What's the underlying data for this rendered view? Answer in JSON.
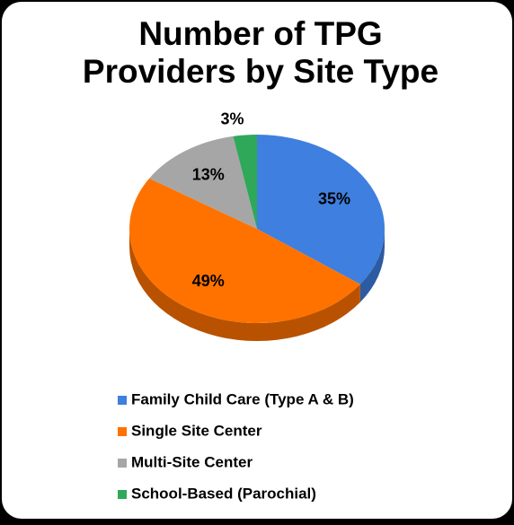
{
  "chart_data": {
    "type": "pie",
    "title": [
      "Number of TPG",
      "Providers by Site Type"
    ],
    "categories": [
      "Family Child Care (Type A & B)",
      "Single Site Center",
      "Multi-Site Center",
      "School-Based (Parochial)"
    ],
    "values": [
      35,
      49,
      13,
      3
    ],
    "value_labels": [
      "35%",
      "49%",
      "13%",
      "3%"
    ],
    "colors": [
      "#3e7fe0",
      "#ff7200",
      "#a6a6a6",
      "#2fa85a"
    ],
    "legend": "bottom"
  }
}
